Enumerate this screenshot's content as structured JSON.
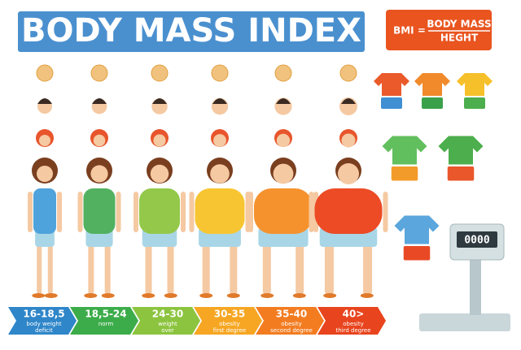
{
  "header": {
    "title": "BODY MASS INDEX"
  },
  "formula": {
    "lhs": "BMI =",
    "numerator": "BODY MASS",
    "denominator": "HEGHT"
  },
  "scale": {
    "display": "0000"
  },
  "categories": [
    {
      "range": "16-18,5",
      "lines": [
        "body weight",
        "deficit"
      ]
    },
    {
      "range": "18,5-24",
      "lines": [
        "norm"
      ]
    },
    {
      "range": "24-30",
      "lines": [
        "weight",
        "over"
      ]
    },
    {
      "range": "30-35",
      "lines": [
        "obesity",
        "first degree"
      ]
    },
    {
      "range": "35-40",
      "lines": [
        "obesity",
        "second degree"
      ]
    },
    {
      "range": "40>",
      "lines": [
        "obesity",
        "third degree"
      ]
    }
  ]
}
